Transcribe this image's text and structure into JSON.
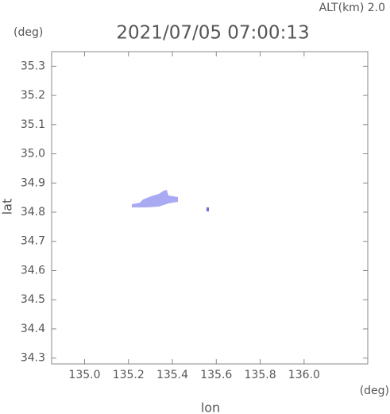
{
  "chart_data": {
    "type": "map",
    "title": "2021/07/05 07:00:13",
    "altitude_label": "ALT(km) 2.0",
    "y_unit": "(deg)",
    "x_unit": "(deg)",
    "x_label": "lon",
    "y_label": "lat",
    "xlim": [
      134.85,
      136.29
    ],
    "ylim": [
      34.28,
      35.35
    ],
    "xticks": [
      {
        "value": 135.0,
        "label": "135.0"
      },
      135.2,
      135.4,
      135.6,
      135.8,
      {
        "value": 136.0,
        "label": "136.0"
      }
    ],
    "yticks": [
      34.3,
      34.4,
      34.5,
      34.6,
      34.7,
      34.8,
      34.9,
      {
        "value": 35.0,
        "label": "35.0"
      },
      35.1,
      35.2,
      35.3
    ],
    "color": "#a9aaf2"
  }
}
